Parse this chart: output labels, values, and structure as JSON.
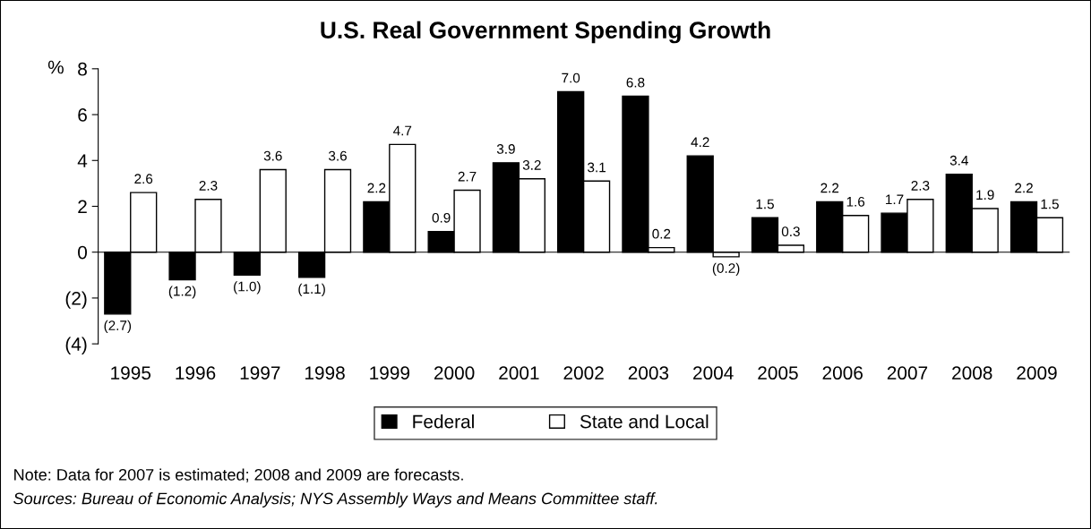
{
  "chart_data": {
    "type": "bar",
    "title": "U.S. Real Government Spending Growth",
    "ylabel": "%",
    "categories": [
      "1995",
      "1996",
      "1997",
      "1998",
      "1999",
      "2000",
      "2001",
      "2002",
      "2003",
      "2004",
      "2005",
      "2006",
      "2007",
      "2008",
      "2009"
    ],
    "series": [
      {
        "name": "Federal",
        "color": "#000000",
        "values": [
          -2.7,
          -1.2,
          -1.0,
          -1.1,
          2.2,
          0.9,
          3.9,
          7.0,
          6.8,
          4.2,
          1.5,
          2.2,
          1.7,
          3.4,
          2.2
        ],
        "value_labels": [
          "(2.7)",
          "(1.2)",
          "(1.0)",
          "(1.1)",
          "2.2",
          "0.9",
          "3.9",
          "7.0",
          "6.8",
          "4.2",
          "1.5",
          "2.2",
          "1.7",
          "3.4",
          "2.2"
        ]
      },
      {
        "name": "State and Local",
        "color": "#ffffff",
        "values": [
          2.6,
          2.3,
          3.6,
          3.6,
          4.7,
          2.7,
          3.2,
          3.1,
          0.2,
          -0.2,
          0.3,
          1.6,
          2.3,
          1.9,
          1.5
        ],
        "value_labels": [
          "2.6",
          "2.3",
          "3.6",
          "3.6",
          "4.7",
          "2.7",
          "3.2",
          "3.1",
          "0.2",
          "(0.2)",
          "0.3",
          "1.6",
          "2.3",
          "1.9",
          "1.5"
        ]
      }
    ],
    "ylim": [
      -4,
      8
    ],
    "yticks": [
      {
        "value": -4,
        "label": "(4)"
      },
      {
        "value": -2,
        "label": "(2)"
      },
      0,
      2,
      4,
      6,
      8
    ],
    "legend": "bottom",
    "annotations": [
      "Note: Data for 2007 is estimated; 2008 and 2009 are forecasts.",
      "Sources: Bureau of Economic Analysis; NYS Assembly Ways and Means Committee staff."
    ]
  }
}
